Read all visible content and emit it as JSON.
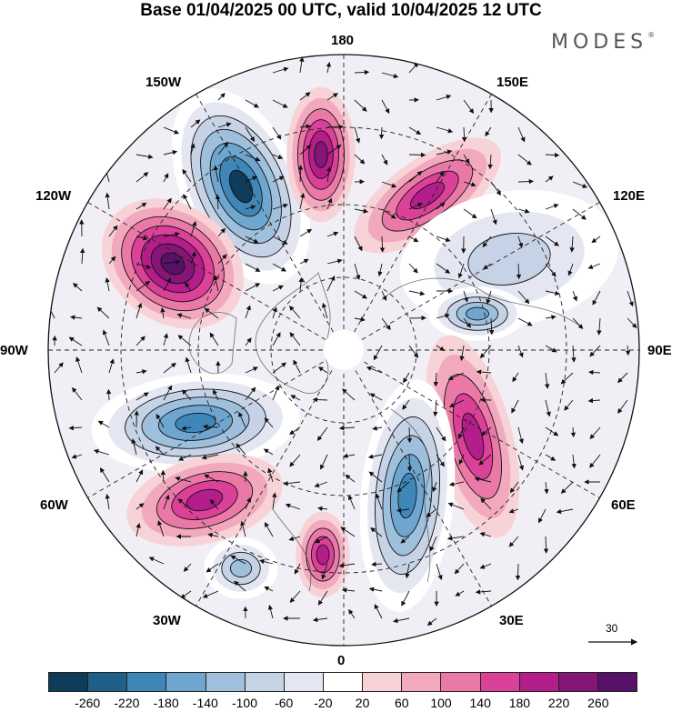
{
  "title": "Base 01/04/2025 00 UTC, valid 10/04/2025 12 UTC",
  "brand": "MODES",
  "brand_mark": "®",
  "longitude_labels": {
    "n180": "180",
    "n150w": "150W",
    "n150e": "150E",
    "n120w": "120W",
    "n120e": "120E",
    "n90w": "90W",
    "n90e": "90E",
    "n60w": "60W",
    "n60e": "60E",
    "n30w": "30W",
    "n30e": "30E",
    "n0": "0"
  },
  "vector_scale": "30",
  "legend": {
    "colors": [
      "#0f3c5a",
      "#1f5f88",
      "#3f87b8",
      "#6ea6cf",
      "#9ec0dc",
      "#c6d3e6",
      "#e4e6f1",
      "#ffffff",
      "#f7d3d7",
      "#f2a9bd",
      "#eb79a8",
      "#dc419a",
      "#b41e8a",
      "#851576",
      "#571268"
    ],
    "ticks": [
      "-260",
      "-220",
      "-180",
      "-140",
      "-100",
      "-60",
      "-20",
      "20",
      "60",
      "100",
      "140",
      "180",
      "220",
      "260"
    ]
  },
  "anomalies": [
    {
      "name": "neg-150w",
      "value": -240
    },
    {
      "name": "pos-130w",
      "value": 250
    },
    {
      "name": "pos-175w",
      "value": 200
    },
    {
      "name": "pos-150e",
      "value": 150
    },
    {
      "name": "neg-120e",
      "value": -90
    },
    {
      "name": "neg-90e",
      "value": -140
    },
    {
      "name": "pos-60e",
      "value": 170
    },
    {
      "name": "neg-20e",
      "value": -200
    },
    {
      "name": "pos-5w",
      "value": 160
    },
    {
      "name": "neg-70w",
      "value": -210
    },
    {
      "name": "pos-45w",
      "value": 170
    },
    {
      "name": "neg-40w",
      "value": -120
    }
  ]
}
